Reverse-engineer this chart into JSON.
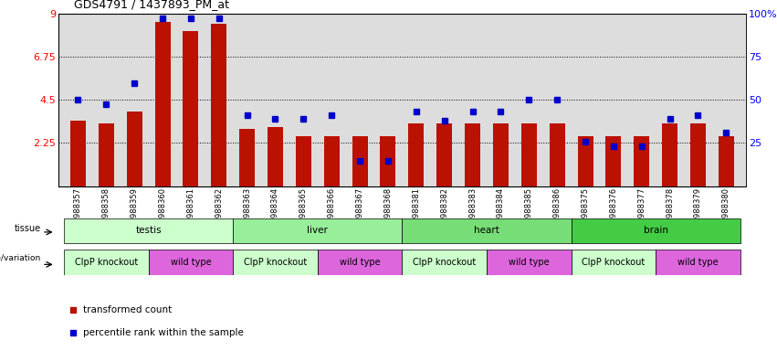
{
  "title": "GDS4791 / 1437893_PM_at",
  "samples": [
    "GSM988357",
    "GSM988358",
    "GSM988359",
    "GSM988360",
    "GSM988361",
    "GSM988362",
    "GSM988363",
    "GSM988364",
    "GSM988365",
    "GSM988366",
    "GSM988367",
    "GSM988368",
    "GSM988381",
    "GSM988382",
    "GSM988383",
    "GSM988384",
    "GSM988385",
    "GSM988386",
    "GSM988375",
    "GSM988376",
    "GSM988377",
    "GSM988378",
    "GSM988379",
    "GSM988380"
  ],
  "bar_values": [
    3.4,
    3.3,
    3.9,
    8.6,
    8.1,
    8.5,
    3.0,
    3.1,
    2.6,
    2.6,
    2.6,
    2.6,
    3.3,
    3.3,
    3.3,
    3.3,
    3.3,
    3.3,
    2.6,
    2.6,
    2.6,
    3.3,
    3.3,
    2.6
  ],
  "percentile_values": [
    4.5,
    4.3,
    5.4,
    8.8,
    8.8,
    8.8,
    3.7,
    3.5,
    3.5,
    3.7,
    1.3,
    1.3,
    3.9,
    3.4,
    3.9,
    3.9,
    4.5,
    4.5,
    2.3,
    2.1,
    2.1,
    3.5,
    3.7,
    2.8
  ],
  "tissue_groups": [
    {
      "label": "testis",
      "start": 0,
      "end": 5,
      "color": "#ccffcc"
    },
    {
      "label": "liver",
      "start": 6,
      "end": 11,
      "color": "#99ee99"
    },
    {
      "label": "heart",
      "start": 12,
      "end": 17,
      "color": "#77dd77"
    },
    {
      "label": "brain",
      "start": 18,
      "end": 23,
      "color": "#44cc44"
    }
  ],
  "genotype_groups": [
    {
      "label": "ClpP knockout",
      "start": 0,
      "end": 2,
      "color": "#ccffcc"
    },
    {
      "label": "wild type",
      "start": 3,
      "end": 5,
      "color": "#dd66dd"
    },
    {
      "label": "ClpP knockout",
      "start": 6,
      "end": 8,
      "color": "#ccffcc"
    },
    {
      "label": "wild type",
      "start": 9,
      "end": 11,
      "color": "#dd66dd"
    },
    {
      "label": "ClpP knockout",
      "start": 12,
      "end": 14,
      "color": "#ccffcc"
    },
    {
      "label": "wild type",
      "start": 15,
      "end": 17,
      "color": "#dd66dd"
    },
    {
      "label": "ClpP knockout",
      "start": 18,
      "end": 20,
      "color": "#ccffcc"
    },
    {
      "label": "wild type",
      "start": 21,
      "end": 23,
      "color": "#dd66dd"
    }
  ],
  "ylim": [
    0,
    9
  ],
  "yticks_left": [
    0,
    2.25,
    4.5,
    6.75,
    9
  ],
  "yticks_right": [
    0,
    25,
    50,
    75,
    100
  ],
  "bar_color": "#bb1100",
  "dot_color": "#0000cc",
  "background_color": "#dddddd",
  "fig_width": 8.51,
  "fig_height": 3.84,
  "dpi": 100
}
